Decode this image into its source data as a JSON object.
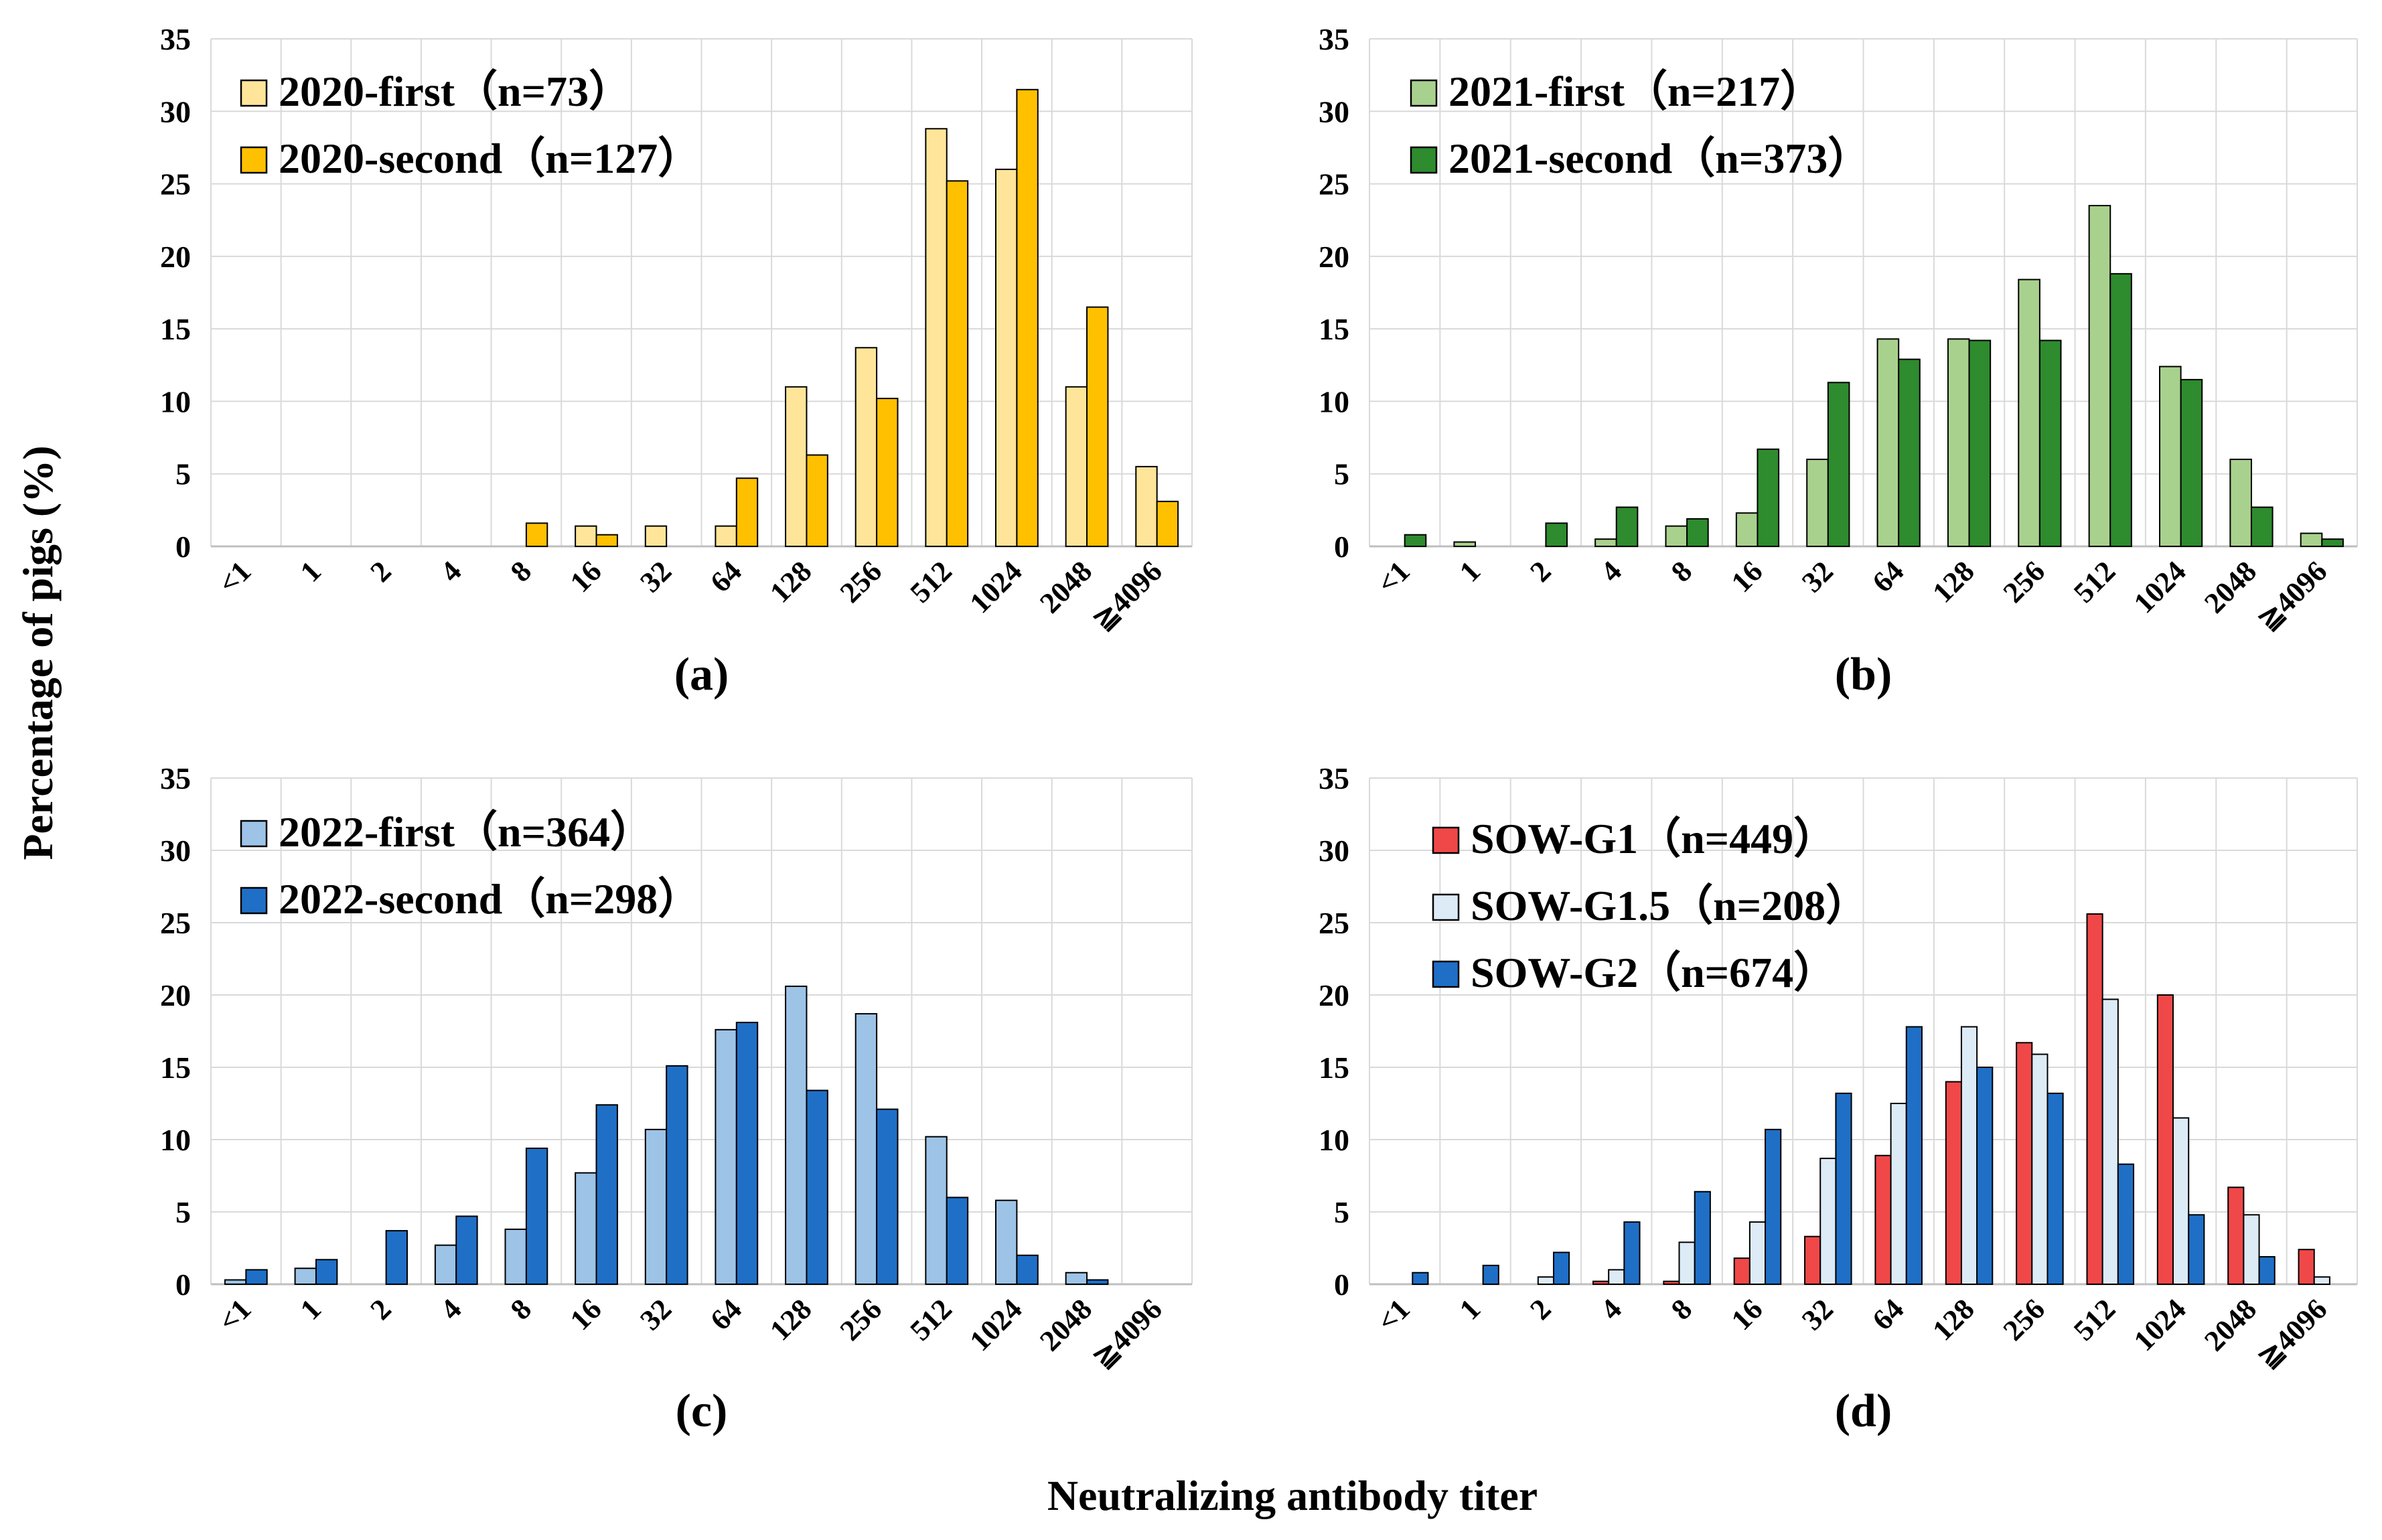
{
  "figure": {
    "ylabel": "Percentage of pigs (%)",
    "xlabel": "Neutralizing antibody titer"
  },
  "chart_data": [
    {
      "type": "bar",
      "panel": "(a)",
      "categories": [
        "<1",
        "1",
        "2",
        "4",
        "8",
        "16",
        "32",
        "64",
        "128",
        "256",
        "512",
        "1024",
        "2048",
        "≧4096"
      ],
      "ylim": [
        0,
        35
      ],
      "yticks": [
        0,
        5,
        10,
        15,
        20,
        25,
        30,
        35
      ],
      "grid": true,
      "legend_position": "top-left",
      "series": [
        {
          "name": "2020-first（n=73）",
          "color": "#FFE599",
          "values": [
            0,
            0,
            0,
            0,
            0,
            1.4,
            1.4,
            1.4,
            11.0,
            13.7,
            28.8,
            26.0,
            11.0,
            5.5
          ]
        },
        {
          "name": "2020-second（n=127）",
          "color": "#FFC000",
          "values": [
            0,
            0,
            0,
            0,
            1.6,
            0.8,
            0,
            4.7,
            6.3,
            10.2,
            25.2,
            31.5,
            16.5,
            3.1
          ]
        }
      ]
    },
    {
      "type": "bar",
      "panel": "(b)",
      "categories": [
        "<1",
        "1",
        "2",
        "4",
        "8",
        "16",
        "32",
        "64",
        "128",
        "256",
        "512",
        "1024",
        "2048",
        "≧4096"
      ],
      "ylim": [
        0,
        35
      ],
      "yticks": [
        0,
        5,
        10,
        15,
        20,
        25,
        30,
        35
      ],
      "grid": true,
      "legend_position": "top-left",
      "series": [
        {
          "name": "2021-first（n=217）",
          "color": "#A9D18E",
          "values": [
            0,
            0.3,
            0,
            0.5,
            1.4,
            2.3,
            6.0,
            14.3,
            14.3,
            18.4,
            23.5,
            12.4,
            6.0,
            0.9
          ]
        },
        {
          "name": "2021-second（n=373）",
          "color": "#2E8B2E",
          "values": [
            0.8,
            0,
            1.6,
            2.7,
            1.9,
            6.7,
            11.3,
            12.9,
            14.2,
            14.2,
            18.8,
            11.5,
            2.7,
            0.5
          ]
        }
      ]
    },
    {
      "type": "bar",
      "panel": "(c)",
      "categories": [
        "<1",
        "1",
        "2",
        "4",
        "8",
        "16",
        "32",
        "64",
        "128",
        "256",
        "512",
        "1024",
        "2048",
        "≧4096"
      ],
      "ylim": [
        0,
        35
      ],
      "yticks": [
        0,
        5,
        10,
        15,
        20,
        25,
        30,
        35
      ],
      "grid": true,
      "legend_position": "top-left",
      "series": [
        {
          "name": "2022-first（n=364）",
          "color": "#9DC3E6",
          "values": [
            0.3,
            1.1,
            0,
            2.7,
            3.8,
            7.7,
            10.7,
            17.6,
            20.6,
            18.7,
            10.2,
            5.8,
            0.8,
            0
          ]
        },
        {
          "name": "2022-second（n=298）",
          "color": "#1F6FC7",
          "values": [
            1.0,
            1.7,
            3.7,
            4.7,
            9.4,
            12.4,
            15.1,
            18.1,
            13.4,
            12.1,
            6.0,
            2.0,
            0.3,
            0
          ]
        }
      ]
    },
    {
      "type": "bar",
      "panel": "(d)",
      "categories": [
        "<1",
        "1",
        "2",
        "4",
        "8",
        "16",
        "32",
        "64",
        "128",
        "256",
        "512",
        "1024",
        "2048",
        "≧4096"
      ],
      "ylim": [
        0,
        35
      ],
      "yticks": [
        0,
        5,
        10,
        15,
        20,
        25,
        30,
        35
      ],
      "grid": true,
      "legend_position": "top-left",
      "series": [
        {
          "name": "SOW-G1（n=449）",
          "color": "#F04848",
          "values": [
            0,
            0,
            0,
            0.2,
            0.2,
            1.8,
            3.3,
            8.9,
            14.0,
            16.7,
            25.6,
            20.0,
            6.7,
            2.4
          ]
        },
        {
          "name": "SOW-G1.5（n=208）",
          "color": "#DDEBF7",
          "values": [
            0,
            0,
            0.5,
            1.0,
            2.9,
            4.3,
            8.7,
            12.5,
            17.8,
            15.9,
            19.7,
            11.5,
            4.8,
            0.5
          ]
        },
        {
          "name": "SOW-G2（n=674）",
          "color": "#1F6FC7",
          "values": [
            0.8,
            1.3,
            2.2,
            4.3,
            6.4,
            10.7,
            13.2,
            17.8,
            15.0,
            13.2,
            8.3,
            4.8,
            1.9,
            0
          ]
        }
      ]
    }
  ]
}
